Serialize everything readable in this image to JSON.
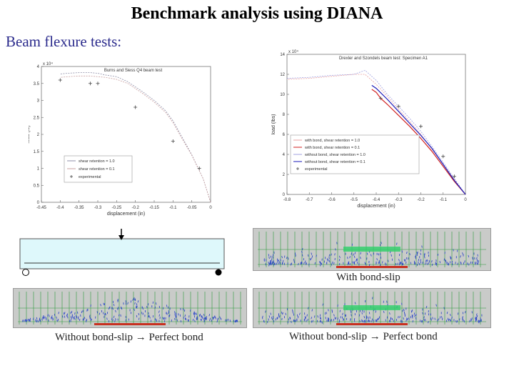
{
  "slide": {
    "title": "Benchmark analysis using DIANA",
    "subtitle": "Beam flexure tests:",
    "caption_with_bond": "With bond-slip",
    "caption_left_bottom": "Without bond-slip → Perfect bond",
    "caption_right_bottom": "Without bond-slip → Perfect bond"
  },
  "chart_data": [
    {
      "type": "line",
      "title": "Burns and Siess Q4 beam test",
      "xlabel": "displacement (in)",
      "ylabel": "load (lb)",
      "y_multiplier": "x 10⁴",
      "xlim": [
        -0.45,
        0
      ],
      "ylim": [
        0,
        4
      ],
      "x_ticks": [
        "-0.45",
        "-0.4",
        "-0.35",
        "-0.3",
        "-0.25",
        "-0.2",
        "-0.15",
        "-0.1",
        "-0.05",
        "0"
      ],
      "y_ticks": [
        "0",
        "0.5",
        "1",
        "1.5",
        "2",
        "2.5",
        "3",
        "3.5",
        "4"
      ],
      "legend": [
        "shear retention = 1.0",
        "shear retention = 0.1",
        "experimental"
      ],
      "series": [
        {
          "name": "shear retention = 1.0",
          "color": "#8f8fa8",
          "x": [
            0,
            -0.02,
            -0.05,
            -0.08,
            -0.1,
            -0.12,
            -0.15,
            -0.18,
            -0.2,
            -0.22,
            -0.25,
            -0.28,
            -0.3,
            -0.32,
            -0.35,
            -0.38,
            -0.4
          ],
          "y": [
            0,
            0.7,
            1.4,
            2.0,
            2.4,
            2.7,
            3.0,
            3.25,
            3.4,
            3.55,
            3.7,
            3.75,
            3.8,
            3.82,
            3.82,
            3.8,
            3.78
          ]
        },
        {
          "name": "shear retention = 0.1",
          "color": "#c9a0a0",
          "x": [
            0,
            -0.02,
            -0.05,
            -0.08,
            -0.1,
            -0.12,
            -0.15,
            -0.18,
            -0.2,
            -0.22,
            -0.25,
            -0.28,
            -0.3,
            -0.32,
            -0.35,
            -0.38,
            -0.4
          ],
          "y": [
            0,
            0.7,
            1.38,
            1.95,
            2.35,
            2.65,
            2.95,
            3.2,
            3.35,
            3.5,
            3.62,
            3.68,
            3.7,
            3.72,
            3.72,
            3.7,
            3.68
          ]
        },
        {
          "name": "experimental",
          "color": "#444444",
          "marker": "+",
          "x": [
            -0.4,
            -0.32,
            -0.3,
            -0.2,
            -0.1,
            -0.03
          ],
          "y": [
            3.6,
            3.5,
            3.5,
            2.8,
            1.8,
            1.0
          ]
        }
      ]
    },
    {
      "type": "line",
      "title": "Drexler and Szondels beam test: Specimen A1",
      "xlabel": "displacement (in)",
      "ylabel": "load (lbs)",
      "y_multiplier": "x 10⁴",
      "xlim": [
        -0.8,
        0
      ],
      "ylim": [
        0,
        14
      ],
      "x_ticks": [
        "-0.8",
        "-0.7",
        "-0.6",
        "-0.5",
        "-0.4",
        "-0.3",
        "-0.2",
        "-0.1",
        "0"
      ],
      "y_ticks": [
        "0",
        "2",
        "4",
        "6",
        "8",
        "10",
        "12",
        "14"
      ],
      "legend": [
        "with bond, shear retention = 1.0",
        "with bond, shear retention = 0.1",
        "without bond, shear retention = 1.0",
        "without bond, shear retention = 0.1",
        "experimental"
      ],
      "series": [
        {
          "name": "with bond, shear retention = 1.0",
          "color": "#e8a0a0",
          "x": [
            0,
            -0.05,
            -0.1,
            -0.15,
            -0.2,
            -0.25,
            -0.3,
            -0.35,
            -0.4,
            -0.45,
            -0.5,
            -0.6,
            -0.7,
            -0.8
          ],
          "y": [
            0,
            1.5,
            3.0,
            4.5,
            6.0,
            7.3,
            8.5,
            9.8,
            11.0,
            12.0,
            12.0,
            11.8,
            11.6,
            11.5
          ]
        },
        {
          "name": "with bond, shear retention = 0.1",
          "color": "#d02020",
          "x": [
            0,
            -0.05,
            -0.1,
            -0.15,
            -0.2,
            -0.25,
            -0.3,
            -0.35,
            -0.38,
            -0.4,
            -0.42
          ],
          "y": [
            0,
            1.3,
            2.8,
            4.3,
            5.6,
            6.8,
            7.9,
            9.0,
            9.6,
            10.2,
            10.5
          ]
        },
        {
          "name": "without bond, shear retention = 1.0",
          "color": "#a0a0e0",
          "x": [
            0,
            -0.05,
            -0.1,
            -0.15,
            -0.2,
            -0.25,
            -0.3,
            -0.35,
            -0.4,
            -0.45,
            -0.5,
            -0.6,
            -0.7,
            -0.8
          ],
          "y": [
            0,
            1.6,
            3.2,
            4.8,
            6.3,
            7.6,
            8.8,
            10.0,
            11.4,
            12.4,
            12.0,
            11.9,
            11.7,
            11.6
          ]
        },
        {
          "name": "without bond, shear retention = 0.1",
          "color": "#1a1ab8",
          "x": [
            0,
            -0.05,
            -0.1,
            -0.15,
            -0.2,
            -0.25,
            -0.3,
            -0.35,
            -0.4,
            -0.42
          ],
          "y": [
            0,
            1.4,
            3.0,
            4.6,
            5.9,
            7.1,
            8.3,
            9.5,
            10.6,
            10.9
          ]
        },
        {
          "name": "experimental",
          "color": "#444444",
          "marker": "+",
          "x": [
            -0.38,
            -0.3,
            -0.2,
            -0.1,
            -0.05
          ],
          "y": [
            9.6,
            8.8,
            6.8,
            3.8,
            1.8
          ]
        }
      ]
    }
  ]
}
